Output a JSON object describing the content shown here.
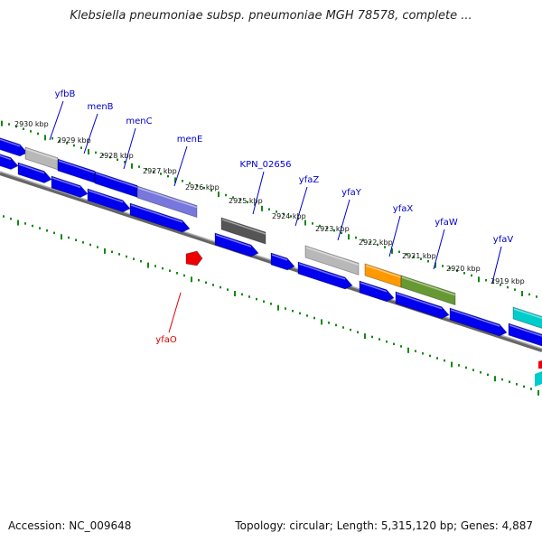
{
  "title": "Klebsiella pneumoniae subsp. pneumoniae MGH 78578, complete ...",
  "footer": {
    "accession": "Accession: NC_009648",
    "stats": "Topology: circular; Length: 5,315,120 bp; Genes: 4,887"
  },
  "ruler": [
    {
      "label": "2930 kbp",
      "kbp": 2930
    },
    {
      "label": "2929 kbp",
      "kbp": 2929
    },
    {
      "label": "2928 kbp",
      "kbp": 2928
    },
    {
      "label": "2927 kbp",
      "kbp": 2927
    },
    {
      "label": "2926 kbp",
      "kbp": 2926
    },
    {
      "label": "2925 kbp",
      "kbp": 2925
    },
    {
      "label": "2924 kbp",
      "kbp": 2924
    },
    {
      "label": "2923 kbp",
      "kbp": 2923
    },
    {
      "label": "2922 kbp",
      "kbp": 2922
    },
    {
      "label": "2921 kbp",
      "kbp": 2921
    },
    {
      "label": "2920 kbp",
      "kbp": 2920
    },
    {
      "label": "2919 kbp",
      "kbp": 2919
    }
  ],
  "gene_labels": [
    {
      "name": "yfbB",
      "color": "#0000cc"
    },
    {
      "name": "menB",
      "color": "#0000cc"
    },
    {
      "name": "menC",
      "color": "#0000cc"
    },
    {
      "name": "menE",
      "color": "#0000cc"
    },
    {
      "name": "KPN_02656",
      "color": "#0000cc"
    },
    {
      "name": "yfaZ",
      "color": "#0000cc"
    },
    {
      "name": "yfaY",
      "color": "#0000cc"
    },
    {
      "name": "yfaX",
      "color": "#0000cc"
    },
    {
      "name": "yfaW",
      "color": "#0000cc"
    },
    {
      "name": "yfaV",
      "color": "#0000cc"
    },
    {
      "name": "yfaO",
      "color": "#dd0000"
    }
  ],
  "colors": {
    "cds": "#0000ee",
    "cds_gray": "#b8b8b8",
    "cds_darkgray": "#555555",
    "cds_purple": "#7777dd",
    "cds_orange": "#ff9900",
    "cds_olive": "#669933",
    "cds_cyan": "#00cccc",
    "rna": "#ee0000",
    "ticks": "#118811",
    "backbone": "#888888"
  }
}
